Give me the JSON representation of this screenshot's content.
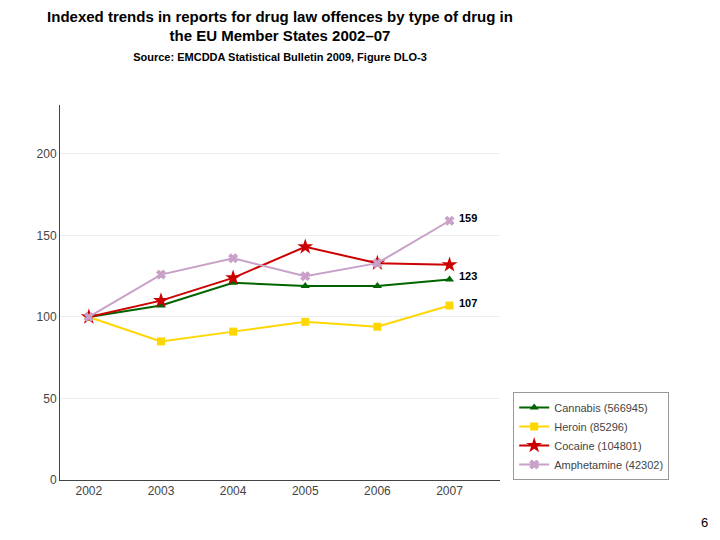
{
  "chart_data": {
    "type": "line",
    "title": "Indexed trends in reports for drug law offences by type of drug in\nthe EU Member States 2002–07",
    "subtitle": "Source: EMCDDA Statistical Bulletin 2009, Figure DLO-3",
    "page_number": "6",
    "x": [
      2002,
      2003,
      2004,
      2005,
      2006,
      2007
    ],
    "series": [
      {
        "name": "Cannabis (566945)",
        "color": "#006400",
        "marker": "triangle-up",
        "values": [
          100,
          107,
          121,
          119,
          119,
          123
        ]
      },
      {
        "name": "Heroin (85296)",
        "color": "#FFD700",
        "marker": "square",
        "values": [
          100,
          85,
          91,
          97,
          94,
          107
        ]
      },
      {
        "name": "Cocaine (104801)",
        "color": "#CC0000",
        "marker": "star",
        "values": [
          100,
          110,
          124,
          143,
          133,
          132
        ]
      },
      {
        "name": "Amphetamine (42302)",
        "color": "#C8A0C8",
        "marker": "x",
        "values": [
          100,
          126,
          136,
          125,
          133,
          159
        ]
      }
    ],
    "annotations": [
      {
        "text": "159",
        "x": 2007,
        "y": 159
      },
      {
        "text": "123",
        "x": 2007,
        "y": 123
      },
      {
        "text": "107",
        "x": 2007,
        "y": 107
      }
    ],
    "xlim": [
      2001.6,
      2007.7
    ],
    "xticks": [
      2002,
      2003,
      2004,
      2005,
      2006,
      2007
    ],
    "ylim": [
      0,
      230
    ],
    "yticks": [
      0,
      50,
      100,
      150,
      200
    ],
    "grid": "y",
    "legend": "lower right"
  }
}
